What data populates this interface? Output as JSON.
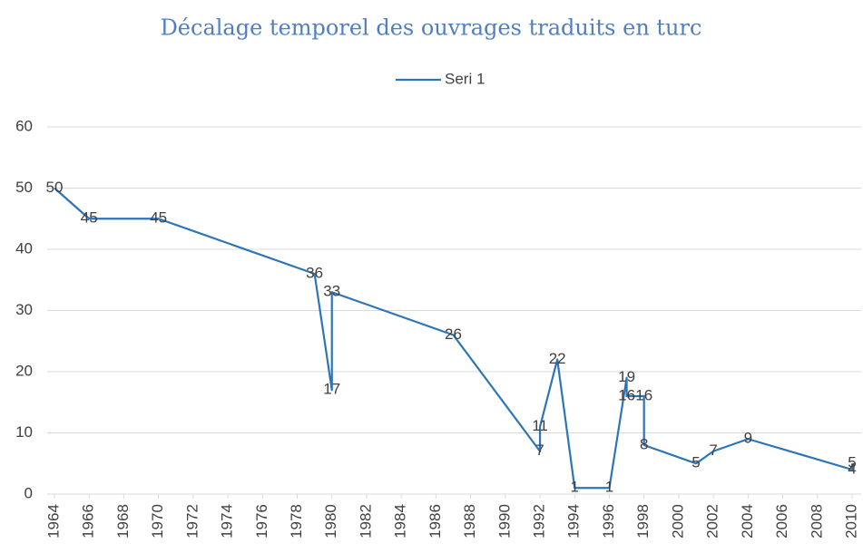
{
  "chart_data": {
    "type": "line",
    "title": "Décalage temporel des ouvrages traduits en turc",
    "series": [
      {
        "name": "Seri 1",
        "color": "#2e75b6",
        "x": [
          1964,
          1966,
          1970,
          1979,
          1980,
          1980,
          1987,
          1992,
          1992,
          1993,
          1994,
          1996,
          1997,
          1997,
          1998,
          1998,
          2001,
          2002,
          2004,
          2010,
          2010
        ],
        "values": [
          50,
          45,
          45,
          36,
          17,
          33,
          26,
          7,
          11,
          22,
          1,
          1,
          19,
          16,
          16,
          8,
          5,
          7,
          9,
          4,
          5
        ]
      }
    ],
    "xlim": [
      1964,
      2010
    ],
    "xticks": [
      1964,
      1966,
      1968,
      1970,
      1972,
      1974,
      1976,
      1978,
      1980,
      1982,
      1984,
      1986,
      1988,
      1990,
      1992,
      1994,
      1996,
      1998,
      2000,
      2002,
      2004,
      2006,
      2008,
      2010
    ],
    "ylim": [
      0,
      60
    ],
    "yticks": [
      0,
      10,
      20,
      30,
      40,
      50,
      60
    ],
    "grid": true,
    "legend": "top"
  }
}
